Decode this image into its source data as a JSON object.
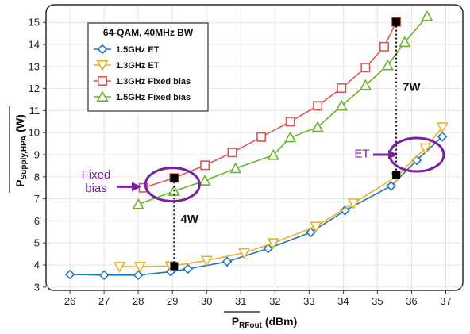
{
  "chart_data": {
    "type": "line",
    "xlabel": "P",
    "xlabel_sub": "RFout",
    "xlabel_unit": "(dBm)",
    "ylabel": "P",
    "ylabel_sub": "Supply,HPA",
    "ylabel_unit": "(W)",
    "xlim": [
      25.3,
      37.5
    ],
    "ylim": [
      2.85,
      15.8
    ],
    "x_ticks": [
      26,
      27,
      28,
      29,
      30,
      31,
      32,
      33,
      34,
      35,
      36,
      37
    ],
    "y_ticks": [
      3,
      4,
      5,
      6,
      7,
      8,
      9,
      10,
      11,
      12,
      13,
      14,
      15
    ],
    "grid": true,
    "legend_title": "64-QAM, 40MHz BW",
    "legend_position": "top-left",
    "series": [
      {
        "name": "1.5GHz ET",
        "color": "#1f77c0",
        "marker": "diamond",
        "points": [
          [
            26.0,
            3.57
          ],
          [
            27.0,
            3.54
          ],
          [
            28.0,
            3.54
          ],
          [
            28.95,
            3.7
          ],
          [
            29.45,
            3.82
          ],
          [
            30.6,
            4.15
          ],
          [
            31.8,
            4.75
          ],
          [
            33.05,
            5.48
          ],
          [
            34.05,
            6.47
          ],
          [
            35.4,
            7.58
          ],
          [
            36.15,
            8.75
          ],
          [
            36.9,
            9.82
          ]
        ]
      },
      {
        "name": "1.3GHz ET",
        "color": "#e8b423",
        "marker": "triangle-down",
        "points": [
          [
            27.45,
            3.93
          ],
          [
            28.05,
            3.93
          ],
          [
            28.95,
            3.95
          ],
          [
            30.0,
            4.2
          ],
          [
            31.1,
            4.55
          ],
          [
            31.95,
            5.0
          ],
          [
            33.2,
            5.75
          ],
          [
            34.3,
            6.8
          ],
          [
            35.55,
            8.0
          ],
          [
            36.4,
            9.3
          ],
          [
            36.9,
            10.25
          ]
        ]
      },
      {
        "name": "1.3GHz Fixed bias",
        "color": "#e05454",
        "marker": "square",
        "points": [
          [
            28.15,
            7.5
          ],
          [
            29.05,
            7.95
          ],
          [
            29.95,
            8.52
          ],
          [
            30.75,
            9.1
          ],
          [
            31.6,
            9.8
          ],
          [
            32.45,
            10.5
          ],
          [
            33.25,
            11.22
          ],
          [
            33.95,
            12.02
          ],
          [
            34.65,
            12.95
          ],
          [
            35.2,
            13.9
          ],
          [
            35.55,
            15.02
          ]
        ]
      },
      {
        "name": "1.5GHz  Fixed bias",
        "color": "#6ab42d",
        "marker": "triangle-up",
        "points": [
          [
            28.0,
            6.75
          ],
          [
            29.05,
            7.35
          ],
          [
            29.95,
            7.82
          ],
          [
            30.85,
            8.38
          ],
          [
            31.95,
            8.98
          ],
          [
            32.45,
            9.78
          ],
          [
            33.25,
            10.25
          ],
          [
            33.95,
            11.22
          ],
          [
            34.65,
            12.15
          ],
          [
            35.3,
            13.05
          ],
          [
            35.8,
            14.1
          ],
          [
            36.45,
            15.28
          ]
        ]
      }
    ],
    "annotations": {
      "markers": [
        [
          29.05,
          7.95
        ],
        [
          29.05,
          3.95
        ],
        [
          35.55,
          15.02
        ],
        [
          35.55,
          8.1
        ]
      ],
      "difference_low": {
        "label": "4W",
        "x": 29.05,
        "from": 3.95,
        "to": 7.95
      },
      "difference_high": {
        "label": "7W",
        "x": 35.55,
        "from": 8.1,
        "to": 15.02
      },
      "fixed_bias_label": [
        "Fixed",
        "bias"
      ],
      "fixed_bias_ellipse": {
        "cx": 29.0,
        "cy": 7.65
      },
      "et_label": "ET",
      "et_ellipse": {
        "cx": 36.15,
        "cy": 9.0
      },
      "accent_color": "#7b1fa2"
    }
  }
}
